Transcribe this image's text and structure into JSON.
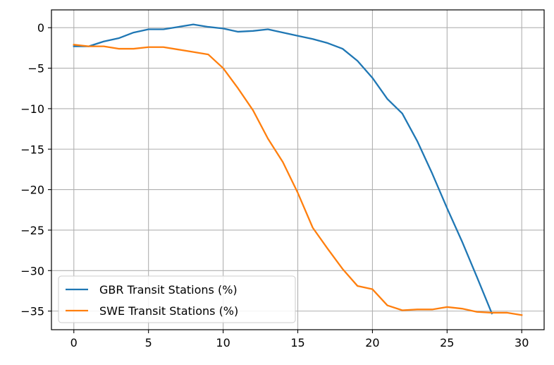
{
  "chart_data": {
    "type": "line",
    "title": "",
    "xlabel": "",
    "ylabel": "",
    "xlim": [
      -1.5,
      31.5
    ],
    "ylim": [
      -37.3,
      2.2
    ],
    "xticks": [
      0,
      5,
      10,
      15,
      20,
      25,
      30
    ],
    "yticks": [
      0,
      -5,
      -10,
      -15,
      -20,
      -25,
      -30,
      -35
    ],
    "xtick_labels": [
      "0",
      "5",
      "10",
      "15",
      "20",
      "25",
      "30"
    ],
    "ytick_labels": [
      "0",
      "−5",
      "−10",
      "−15",
      "−20",
      "−25",
      "−30",
      "−35"
    ],
    "grid": true,
    "legend_position": "lower-left",
    "series": [
      {
        "name": "GBR Transit Stations (%)",
        "color": "#1f77b4",
        "x": [
          0,
          1,
          2,
          3,
          4,
          5,
          6,
          7,
          8,
          9,
          10,
          11,
          12,
          13,
          14,
          15,
          16,
          17,
          18,
          19,
          20,
          21,
          22,
          23,
          24,
          25,
          26,
          27,
          28
        ],
        "values": [
          -2.3,
          -2.3,
          -1.7,
          -1.3,
          -0.6,
          -0.2,
          -0.2,
          0.1,
          0.4,
          0.1,
          -0.1,
          -0.5,
          -0.4,
          -0.2,
          -0.6,
          -1.0,
          -1.4,
          -1.9,
          -2.6,
          -4.1,
          -6.2,
          -8.8,
          -10.6,
          -14.0,
          -18.0,
          -22.3,
          -26.4,
          -30.8,
          -35.3
        ]
      },
      {
        "name": "SWE Transit Stations (%)",
        "color": "#ff7f0e",
        "x": [
          0,
          1,
          2,
          3,
          4,
          5,
          6,
          7,
          8,
          9,
          10,
          11,
          12,
          13,
          14,
          15,
          16,
          17,
          18,
          19,
          20,
          21,
          22,
          23,
          24,
          25,
          26,
          27,
          28,
          29,
          30
        ],
        "values": [
          -2.1,
          -2.3,
          -2.3,
          -2.6,
          -2.6,
          -2.4,
          -2.4,
          -2.7,
          -3.0,
          -3.3,
          -5.0,
          -7.5,
          -10.2,
          -13.7,
          -16.6,
          -20.4,
          -24.7,
          -27.3,
          -29.8,
          -31.9,
          -32.3,
          -34.3,
          -34.9,
          -34.8,
          -34.8,
          -34.5,
          -34.7,
          -35.1,
          -35.2,
          -35.2,
          -35.5
        ]
      }
    ]
  }
}
